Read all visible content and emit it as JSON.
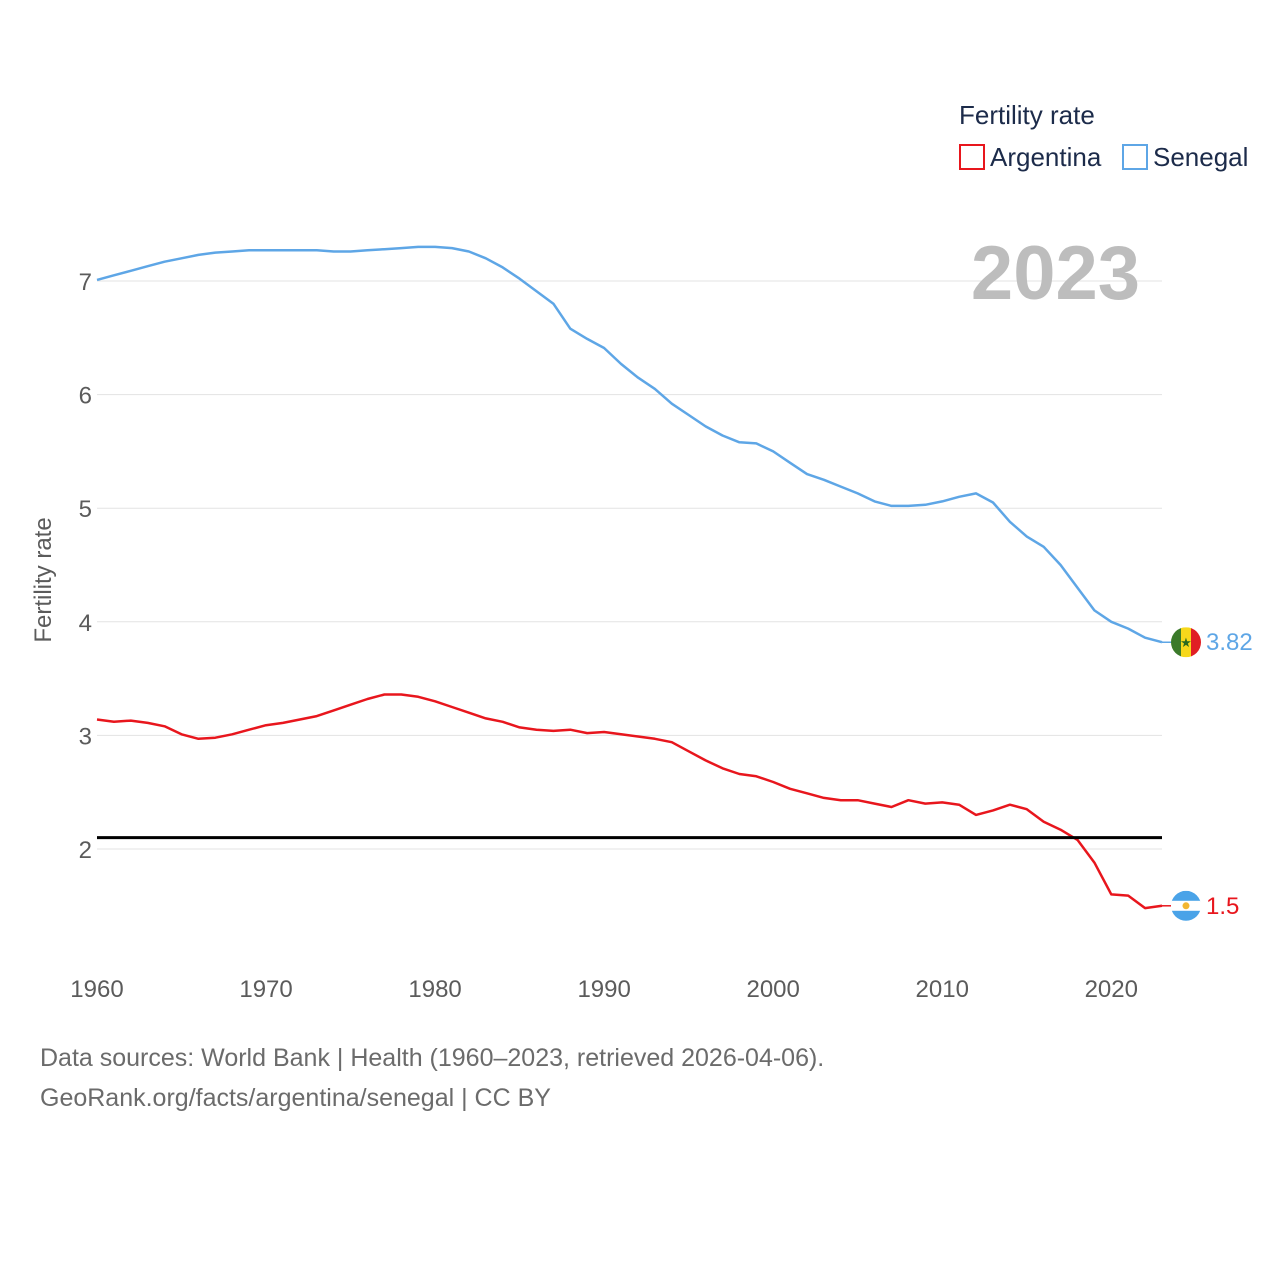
{
  "chart_data": {
    "type": "line",
    "xlabel": "",
    "ylabel": "Fertility rate",
    "xlim": [
      1960,
      2023
    ],
    "ylim": [
      1.0,
      7.6
    ],
    "x_ticks": [
      1960,
      1970,
      1980,
      1990,
      2000,
      2010,
      2020
    ],
    "y_ticks": [
      2,
      3,
      4,
      5,
      6,
      7
    ],
    "grid": true,
    "legend": {
      "title": "Fertility rate",
      "position": "top-right"
    },
    "year_label": "2023",
    "reference_line": {
      "y": 2.1,
      "color": "#000000"
    },
    "x": [
      1960,
      1961,
      1962,
      1963,
      1964,
      1965,
      1966,
      1967,
      1968,
      1969,
      1970,
      1971,
      1972,
      1973,
      1974,
      1975,
      1976,
      1977,
      1978,
      1979,
      1980,
      1981,
      1982,
      1983,
      1984,
      1985,
      1986,
      1987,
      1988,
      1989,
      1990,
      1991,
      1992,
      1993,
      1994,
      1995,
      1996,
      1997,
      1998,
      1999,
      2000,
      2001,
      2002,
      2003,
      2004,
      2005,
      2006,
      2007,
      2008,
      2009,
      2010,
      2011,
      2012,
      2013,
      2014,
      2015,
      2016,
      2017,
      2018,
      2019,
      2020,
      2021,
      2022,
      2023
    ],
    "series": [
      {
        "name": "Argentina",
        "color": "#e8161d",
        "end_label": "1.5",
        "flag": "argentina-flag",
        "values": [
          3.14,
          3.12,
          3.13,
          3.11,
          3.08,
          3.01,
          2.97,
          2.98,
          3.01,
          3.05,
          3.09,
          3.11,
          3.14,
          3.17,
          3.22,
          3.27,
          3.32,
          3.36,
          3.36,
          3.34,
          3.3,
          3.25,
          3.2,
          3.15,
          3.12,
          3.07,
          3.05,
          3.04,
          3.05,
          3.02,
          3.03,
          3.01,
          2.99,
          2.97,
          2.94,
          2.86,
          2.78,
          2.71,
          2.66,
          2.64,
          2.59,
          2.53,
          2.49,
          2.45,
          2.43,
          2.43,
          2.4,
          2.37,
          2.43,
          2.4,
          2.41,
          2.39,
          2.3,
          2.34,
          2.39,
          2.35,
          2.24,
          2.17,
          2.08,
          1.88,
          1.6,
          1.59,
          1.48,
          1.5
        ]
      },
      {
        "name": "Senegal",
        "color": "#5ea6e6",
        "end_label": "3.82",
        "flag": "senegal-flag",
        "values": [
          7.01,
          7.05,
          7.09,
          7.13,
          7.17,
          7.2,
          7.23,
          7.25,
          7.26,
          7.27,
          7.27,
          7.27,
          7.27,
          7.27,
          7.26,
          7.26,
          7.27,
          7.28,
          7.29,
          7.3,
          7.3,
          7.29,
          7.26,
          7.2,
          7.12,
          7.02,
          6.91,
          6.8,
          6.58,
          6.49,
          6.41,
          6.27,
          6.15,
          6.05,
          5.92,
          5.82,
          5.72,
          5.64,
          5.58,
          5.57,
          5.5,
          5.4,
          5.3,
          5.25,
          5.19,
          5.13,
          5.06,
          5.02,
          5.02,
          5.03,
          5.06,
          5.1,
          5.13,
          5.05,
          4.88,
          4.75,
          4.66,
          4.5,
          4.3,
          4.1,
          4.0,
          3.94,
          3.86,
          3.82
        ]
      }
    ]
  },
  "footer": {
    "line1": "Data sources: World Bank | Health (1960–2023, retrieved 2026-04-06).",
    "line2": "GeoRank.org/facts/argentina/senegal | CC BY"
  }
}
